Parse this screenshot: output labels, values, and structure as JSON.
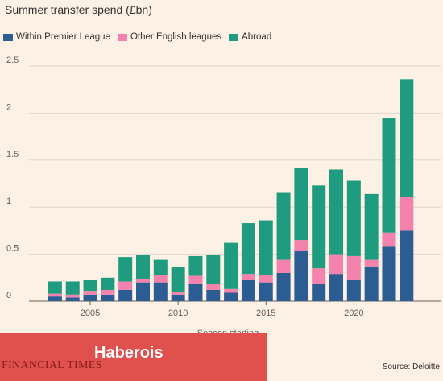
{
  "header": {
    "title": "Summer transfer spend (£bn)"
  },
  "source": "Source: Deloitte",
  "brand": {
    "overlay_text": "Haberois",
    "logo_text": "FINANCIAL TIMES",
    "bar_color": "#e0514e"
  },
  "chart_data": {
    "type": "bar",
    "stacked": true,
    "title": "Summer transfer spend (£bn)",
    "xlabel": "Season starting",
    "ylabel": "",
    "ylim": [
      0,
      2.5
    ],
    "y_ticks": [
      0,
      0.5,
      1,
      1.5,
      2,
      2.5
    ],
    "y_tick_labels": [
      "0",
      "0.5",
      "1",
      "1.5",
      "2",
      "2.5"
    ],
    "x_tick_labels": [
      "2005",
      "2010",
      "2015",
      "2020"
    ],
    "x_tick_values": [
      2005,
      2010,
      2015,
      2020
    ],
    "categories": [
      2003,
      2004,
      2005,
      2006,
      2007,
      2008,
      2009,
      2010,
      2011,
      2012,
      2013,
      2014,
      2015,
      2016,
      2017,
      2018,
      2019,
      2020,
      2021,
      2022,
      2023
    ],
    "series": [
      {
        "name": "Within Premier League",
        "color": "#2b5c92",
        "values": [
          0.05,
          0.04,
          0.07,
          0.07,
          0.12,
          0.2,
          0.2,
          0.07,
          0.19,
          0.12,
          0.09,
          0.23,
          0.2,
          0.3,
          0.54,
          0.18,
          0.29,
          0.23,
          0.37,
          0.58,
          0.75
        ]
      },
      {
        "name": "Other English leagues",
        "color": "#f383ad",
        "values": [
          0.03,
          0.03,
          0.04,
          0.05,
          0.09,
          0.04,
          0.08,
          0.03,
          0.08,
          0.06,
          0.04,
          0.06,
          0.08,
          0.14,
          0.11,
          0.17,
          0.21,
          0.25,
          0.07,
          0.15,
          0.36
        ]
      },
      {
        "name": "Abroad",
        "color": "#1f9b7f",
        "values": [
          0.13,
          0.14,
          0.12,
          0.13,
          0.26,
          0.25,
          0.16,
          0.26,
          0.21,
          0.31,
          0.49,
          0.54,
          0.58,
          0.72,
          0.77,
          0.88,
          0.9,
          0.8,
          0.7,
          1.22,
          1.25
        ]
      }
    ],
    "grid": true,
    "legend_position": "top-left"
  }
}
